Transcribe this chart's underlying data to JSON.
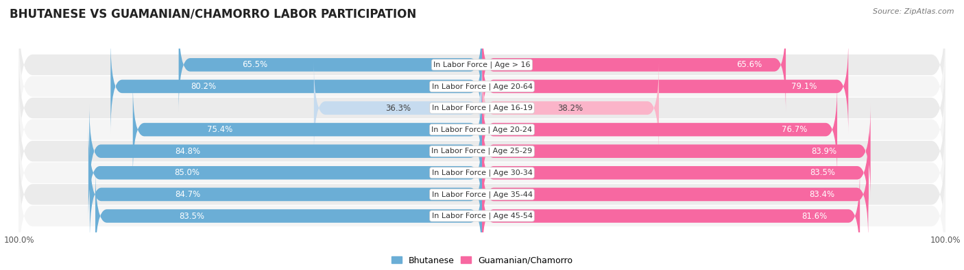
{
  "title": "BHUTANESE VS GUAMANIAN/CHAMORRO LABOR PARTICIPATION",
  "source": "Source: ZipAtlas.com",
  "categories": [
    "In Labor Force | Age > 16",
    "In Labor Force | Age 20-64",
    "In Labor Force | Age 16-19",
    "In Labor Force | Age 20-24",
    "In Labor Force | Age 25-29",
    "In Labor Force | Age 30-34",
    "In Labor Force | Age 35-44",
    "In Labor Force | Age 45-54"
  ],
  "bhutanese": [
    65.5,
    80.2,
    36.3,
    75.4,
    84.8,
    85.0,
    84.7,
    83.5
  ],
  "guamanian": [
    65.6,
    79.1,
    38.2,
    76.7,
    83.9,
    83.5,
    83.4,
    81.6
  ],
  "bhutanese_color": "#6baed6",
  "bhutanese_color_light": "#c6dbef",
  "guamanian_color": "#f768a1",
  "guamanian_color_light": "#fbb4c9",
  "max_val": 100.0,
  "row_bg_even": "#ebebeb",
  "row_bg_odd": "#f5f5f5",
  "title_fontsize": 12,
  "label_fontsize": 8.5,
  "category_fontsize": 8.0,
  "legend_fontsize": 9,
  "bar_height": 0.62
}
